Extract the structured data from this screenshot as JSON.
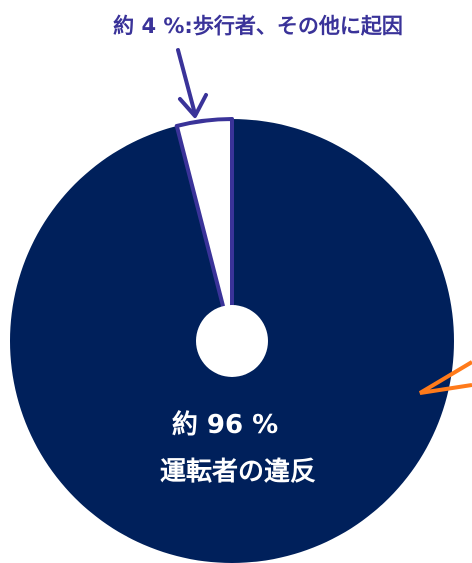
{
  "chart_data": {
    "type": "pie",
    "slices": [
      {
        "value": 96,
        "label_line1": "約 96 %",
        "label_line2": "運転者の違反",
        "color": "#00205b"
      },
      {
        "value": 4,
        "label": "約 4 %:歩行者、その他に起因",
        "color": "#ffffff",
        "outline": "#3a3399"
      }
    ],
    "center_hole_color": "#ffffff",
    "arrow_color": "#3a3399",
    "pointer_color": "#ff7a1a"
  }
}
